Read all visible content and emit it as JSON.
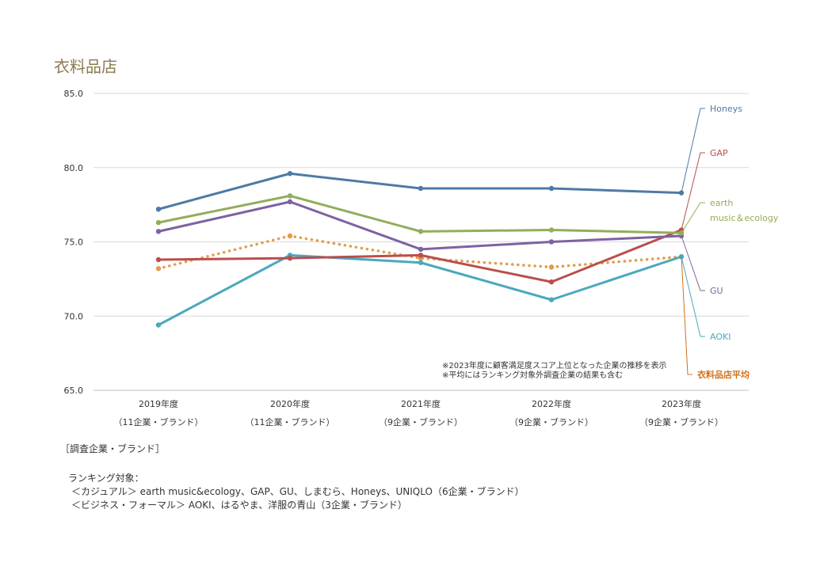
{
  "chart_data": {
    "type": "line",
    "title": "衣料品店",
    "categories": [
      "2019年度",
      "2020年度",
      "2021年度",
      "2022年度",
      "2023年度"
    ],
    "category_sublabels": [
      "（11企業・ブランド）",
      "（11企業・ブランド）",
      "（9企業・ブランド）",
      "（9企業・ブランド）",
      "（9企業・ブランド）"
    ],
    "ylim": [
      65.0,
      85.0
    ],
    "yticks": [
      "65.0",
      "70.0",
      "75.0",
      "80.0",
      "85.0"
    ],
    "grid": true,
    "series": [
      {
        "name": "Honeys",
        "label_lines": [
          "Honeys"
        ],
        "color": "#4e7aa6",
        "dash": false,
        "values": [
          77.2,
          79.6,
          78.6,
          78.6,
          78.3
        ]
      },
      {
        "name": "GAP",
        "label_lines": [
          "GAP"
        ],
        "color": "#bb4e4b",
        "dash": false,
        "values": [
          73.8,
          73.9,
          74.1,
          72.3,
          75.8
        ]
      },
      {
        "name": "earth music&ecology",
        "label_lines": [
          "earth",
          "music＆ecology"
        ],
        "color": "#93ad5a",
        "dash": false,
        "values": [
          76.3,
          78.1,
          75.7,
          75.8,
          75.6
        ]
      },
      {
        "name": "GU",
        "label_lines": [
          "GU"
        ],
        "color": "#7e62a1",
        "dash": false,
        "values": [
          75.7,
          77.7,
          74.5,
          75.0,
          75.4
        ]
      },
      {
        "name": "AOKI",
        "label_lines": [
          "AOKI"
        ],
        "color": "#4ba8be",
        "dash": false,
        "values": [
          69.4,
          74.1,
          73.6,
          71.1,
          74.0
        ]
      },
      {
        "name": "衣料品店平均",
        "label_lines": [
          "衣料品店平均"
        ],
        "color": "#e39b4b",
        "label_color": "#d0731b",
        "dash": true,
        "values": [
          73.2,
          75.4,
          73.9,
          73.3,
          74.0
        ]
      }
    ],
    "notes": [
      "※2023年度に顧客満足度スコア上位となった企業の推移を表示",
      "※平均にはランキング対象外調査企業の結果も含む"
    ]
  },
  "footer": {
    "header": "［調査企業・ブランド］",
    "ranking_title": "ランキング対象：",
    "casual": "＜カジュアル＞ earth music&ecology、GAP、GU、しまむら、Honeys、UNIQLO（6企業・ブランド）",
    "business": "＜ビジネス・フォーマル＞ AOKI、はるやま、洋服の青山（3企業・ブランド）"
  }
}
